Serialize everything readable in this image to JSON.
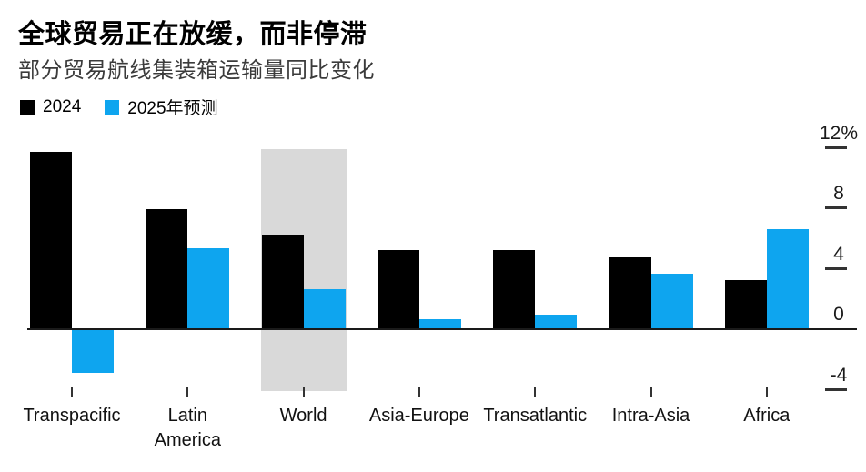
{
  "header": {
    "title": "全球贸易正在放缓，而非停滞",
    "subtitle": "部分贸易航线集装箱运输量同比变化"
  },
  "legend": [
    {
      "label": "2024",
      "color": "#000000"
    },
    {
      "label": "2025年预测",
      "color": "#0ea5ef"
    }
  ],
  "chart_data": {
    "type": "bar",
    "title": "全球贸易正在放缓，而非停滞",
    "subtitle": "部分贸易航线集装箱运输量同比变化",
    "unit": "%",
    "categories": [
      "Transpacific",
      "Latin America",
      "World",
      "Asia-Europe",
      "Transatlantic",
      "Intra-Asia",
      "Africa"
    ],
    "category_label_lines": [
      [
        "Transpacific"
      ],
      [
        "Latin",
        "America"
      ],
      [
        "World"
      ],
      [
        "Asia-Europe"
      ],
      [
        "Transatlantic"
      ],
      [
        "Intra-Asia"
      ],
      [
        "Africa"
      ]
    ],
    "series": [
      {
        "name": "2024",
        "color": "#000000",
        "values": [
          11.8,
          8.0,
          6.3,
          5.3,
          5.3,
          4.8,
          3.3
        ]
      },
      {
        "name": "2025年预测",
        "color": "#0ea5ef",
        "values": [
          -2.8,
          5.4,
          2.7,
          0.7,
          1.0,
          3.7,
          6.7
        ]
      }
    ],
    "yticks": [
      {
        "value": 12,
        "label": "12%"
      },
      {
        "value": 8,
        "label": "8"
      },
      {
        "value": 4,
        "label": "4"
      },
      {
        "value": 0,
        "label": "0"
      },
      {
        "value": -4,
        "label": "-4"
      }
    ],
    "ylim": [
      -4,
      12
    ],
    "highlight_category": "World",
    "highlight_color": "#d9d9d9",
    "legend_position": "top-left",
    "grid": false
  }
}
